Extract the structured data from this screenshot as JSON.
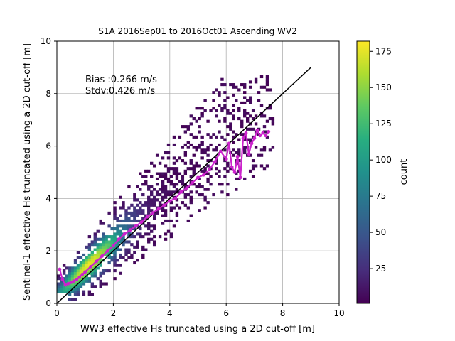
{
  "chart_data": {
    "type": "heatmap",
    "title": "S1A 2016Sep01 to 2016Oct01 Ascending WV2",
    "xlabel": "WW3 effective Hs truncated using a 2D cut-off [m]",
    "ylabel": "Sentinel-1 effective Hs truncated using a 2D cut-off [m]",
    "xlim": [
      0,
      10
    ],
    "ylim": [
      0,
      10
    ],
    "xticks": [
      "0",
      "2",
      "4",
      "6",
      "8",
      "10"
    ],
    "yticks": [
      "0",
      "2",
      "4",
      "6",
      "8",
      "10"
    ],
    "grid": true,
    "colormap": "viridis",
    "colorbar": {
      "label": "count",
      "min": 1,
      "max": 182,
      "ticks": [
        "25",
        "50",
        "75",
        "100",
        "125",
        "150",
        "175"
      ]
    },
    "annotations": {
      "bias": "Bias :0.266 m/s",
      "stdv": "Stdv:0.426 m/s"
    },
    "reference_line": {
      "x": [
        0,
        9
      ],
      "y": [
        0,
        9
      ],
      "color": "#000000"
    },
    "mean_curve": {
      "color": "#cc22cc",
      "x": [
        0.1,
        0.2,
        0.3,
        0.4,
        0.5,
        0.6,
        0.7,
        0.8,
        0.9,
        1.0,
        1.2,
        1.4,
        1.6,
        1.8,
        2.0,
        2.2,
        2.4,
        2.6,
        2.8,
        3.0,
        3.2,
        3.4,
        3.6,
        3.8,
        4.0,
        4.2,
        4.4,
        4.6,
        4.8,
        5.0,
        5.2,
        5.4,
        5.6,
        5.8,
        6.0,
        6.1,
        6.2,
        6.3,
        6.4,
        6.5,
        6.6,
        6.7,
        6.8,
        6.9,
        7.0,
        7.1,
        7.2,
        7.3,
        7.4,
        7.5
      ],
      "y": [
        1.3,
        0.9,
        0.7,
        0.75,
        0.8,
        0.85,
        0.9,
        1.0,
        1.1,
        1.2,
        1.4,
        1.6,
        1.8,
        2.0,
        2.2,
        2.45,
        2.65,
        2.8,
        2.95,
        3.1,
        3.3,
        3.45,
        3.6,
        3.75,
        3.9,
        4.0,
        4.25,
        4.4,
        4.6,
        4.8,
        4.9,
        5.1,
        5.4,
        5.8,
        5.5,
        6.1,
        5.2,
        5.0,
        5.6,
        4.8,
        6.3,
        6.5,
        5.7,
        6.1,
        6.3,
        6.6,
        6.4,
        6.5,
        6.4,
        6.55
      ]
    }
  }
}
